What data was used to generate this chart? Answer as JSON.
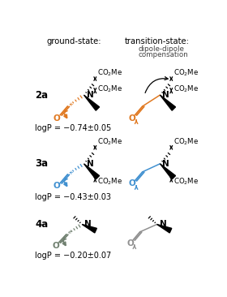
{
  "title_left": "ground-state:",
  "title_right": "transition-state:",
  "dipole_line1": "dipole-dipole",
  "dipole_line2": "compensation",
  "logP": [
    "logP = −0.74±0.05",
    "logP = −0.43±0.03",
    "logP = −0.20±0.07"
  ],
  "color_2a": "#E07820",
  "color_3a": "#4090D0",
  "color_4a": "#708070",
  "color_4a_ts": "#909090",
  "bg_color": "#FFFFFF"
}
